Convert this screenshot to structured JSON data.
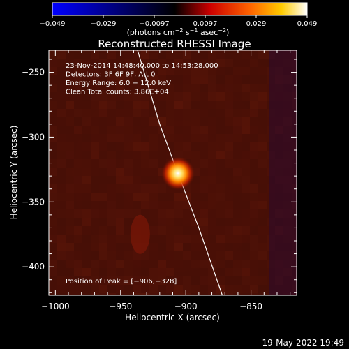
{
  "colorbar": {
    "ticks": [
      "−0.049",
      "−0.029",
      "−0.0097",
      "0.0097",
      "0.029",
      "0.049"
    ],
    "unit_label": "(photons cm",
    "unit_sup1": "−2",
    "unit_mid1": " s",
    "unit_sup2": "−1",
    "unit_mid2": " asec",
    "unit_sup3": "−2",
    "unit_end": ")",
    "colors": [
      "#0000ff",
      "#000000",
      "#cc0000",
      "#ff6600",
      "#ffcc00",
      "#ffffff"
    ]
  },
  "chart_data": {
    "type": "heatmap",
    "title": "Reconstructed RHESSI Image",
    "xlabel": "Heliocentric X (arcsec)",
    "ylabel": "Heliocentric Y (arcsec)",
    "xlim": [
      -1005,
      -815
    ],
    "ylim": [
      -422,
      -233
    ],
    "x_ticks": [
      -1000,
      -950,
      -900,
      -850
    ],
    "x_tick_labels": [
      "−1000",
      "−950",
      "−900",
      "−850"
    ],
    "y_ticks": [
      -250,
      -300,
      -350,
      -400
    ],
    "y_tick_labels": [
      "−250",
      "−300",
      "−350",
      "−400"
    ],
    "peak": {
      "x": -906,
      "y": -328
    },
    "limb": [
      [
        -937,
        -233
      ],
      [
        -920,
        -290
      ],
      [
        -906,
        -328
      ],
      [
        -890,
        -370
      ],
      [
        -872,
        -422
      ]
    ],
    "colormap": "red-temperature",
    "info_lines": [
      "23-Nov-2014 14:48:40.000 to 14:53:28.000",
      "Detectors: 3F 6F 9F, Att 0",
      "Energy Range: 6.0 − 12.0 keV",
      "Clean    Total counts: 3.86E+04"
    ],
    "peak_label": "Position of Peak = [−906,−328]"
  },
  "footer": {
    "timestamp": "19-May-2022 19:49"
  }
}
